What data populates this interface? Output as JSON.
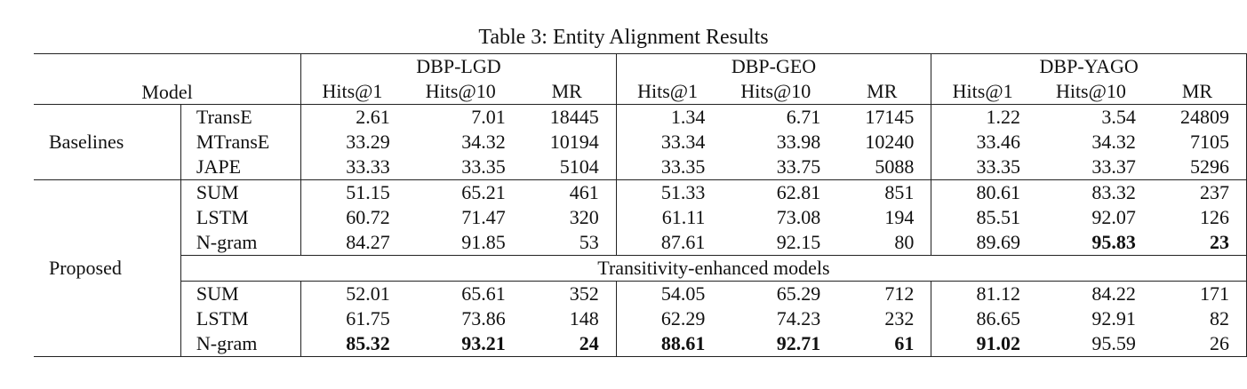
{
  "title": "Table 3: Entity Alignment Results",
  "table": {
    "model_header": "Model",
    "datasets": [
      {
        "name": "DBP-LGD",
        "metrics": [
          "Hits@1",
          "Hits@10",
          "MR"
        ]
      },
      {
        "name": "DBP-GEO",
        "metrics": [
          "Hits@1",
          "Hits@10",
          "MR"
        ]
      },
      {
        "name": "DBP-YAGO",
        "metrics": [
          "Hits@1",
          "Hits@10",
          "MR"
        ]
      }
    ],
    "groups": [
      {
        "label": "Baselines",
        "rows": [
          {
            "model": "TransE",
            "values": [
              2.61,
              7.01,
              18445,
              1.34,
              6.71,
              17145,
              1.22,
              3.54,
              24809
            ]
          },
          {
            "model": "MTransE",
            "values": [
              33.29,
              34.32,
              10194,
              33.34,
              33.98,
              10240,
              33.46,
              34.32,
              7105
            ]
          },
          {
            "model": "JAPE",
            "values": [
              33.33,
              33.35,
              5104,
              33.35,
              33.75,
              5088,
              33.35,
              33.37,
              5296
            ]
          }
        ]
      },
      {
        "label": "Proposed",
        "rows": [
          {
            "model": "SUM",
            "values": [
              51.15,
              65.21,
              461,
              51.33,
              62.81,
              851,
              80.61,
              83.32,
              237
            ]
          },
          {
            "model": "LSTM",
            "values": [
              60.72,
              71.47,
              320,
              61.11,
              73.08,
              194,
              85.51,
              92.07,
              126
            ]
          },
          {
            "model": "N-gram",
            "values": [
              84.27,
              91.85,
              53,
              87.61,
              92.15,
              80,
              89.69,
              95.83,
              23
            ]
          }
        ],
        "subheading": "Transitivity-enhanced models",
        "sub_rows": [
          {
            "model": "SUM",
            "values": [
              52.01,
              65.61,
              352,
              54.05,
              65.29,
              712,
              81.12,
              84.22,
              171
            ]
          },
          {
            "model": "LSTM",
            "values": [
              61.75,
              73.86,
              148,
              62.29,
              74.23,
              232,
              86.65,
              92.91,
              82
            ]
          },
          {
            "model": "N-gram",
            "values": [
              85.32,
              93.21,
              24,
              88.61,
              92.71,
              61,
              91.02,
              95.59,
              26
            ]
          }
        ]
      }
    ]
  }
}
